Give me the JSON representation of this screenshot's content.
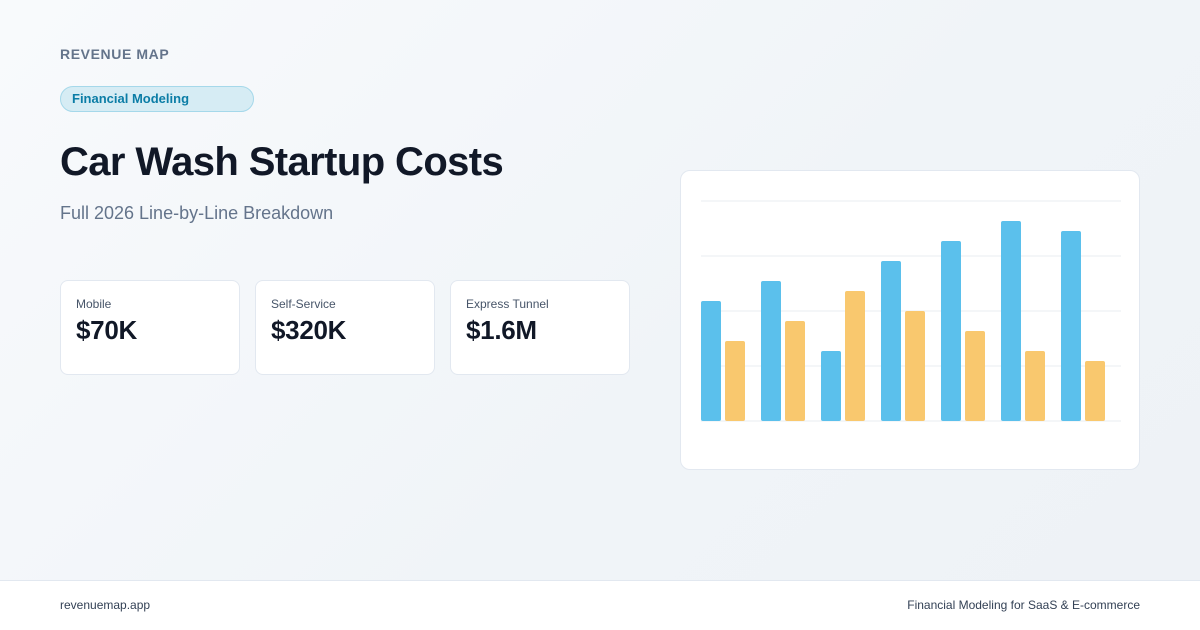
{
  "brand": "REVENUE MAP",
  "badge": "Financial Modeling",
  "title": "Car Wash Startup Costs",
  "subtitle": "Full 2026 Line-by-Line Breakdown",
  "stats": [
    {
      "label": "Mobile",
      "value": "$70K"
    },
    {
      "label": "Self-Service",
      "value": "$320K"
    },
    {
      "label": "Express Tunnel",
      "value": "$1.6M"
    }
  ],
  "colors": {
    "series_a": "#5bc0ec",
    "series_b": "#f9c86e",
    "grid": "#e8edf2"
  },
  "chart_data": {
    "type": "bar",
    "grid": true,
    "ylim": [
      0,
      11
    ],
    "categories": [
      "",
      "",
      "",
      "",
      "",
      "",
      ""
    ],
    "series": [
      {
        "values": [
          6,
          7,
          3.5,
          8,
          9,
          10,
          9.5
        ]
      },
      {
        "values": [
          4,
          5,
          6.5,
          5.5,
          4.5,
          3.5,
          3
        ]
      }
    ]
  },
  "footer": {
    "left": "revenuemap.app",
    "right": "Financial Modeling for SaaS & E-commerce"
  }
}
